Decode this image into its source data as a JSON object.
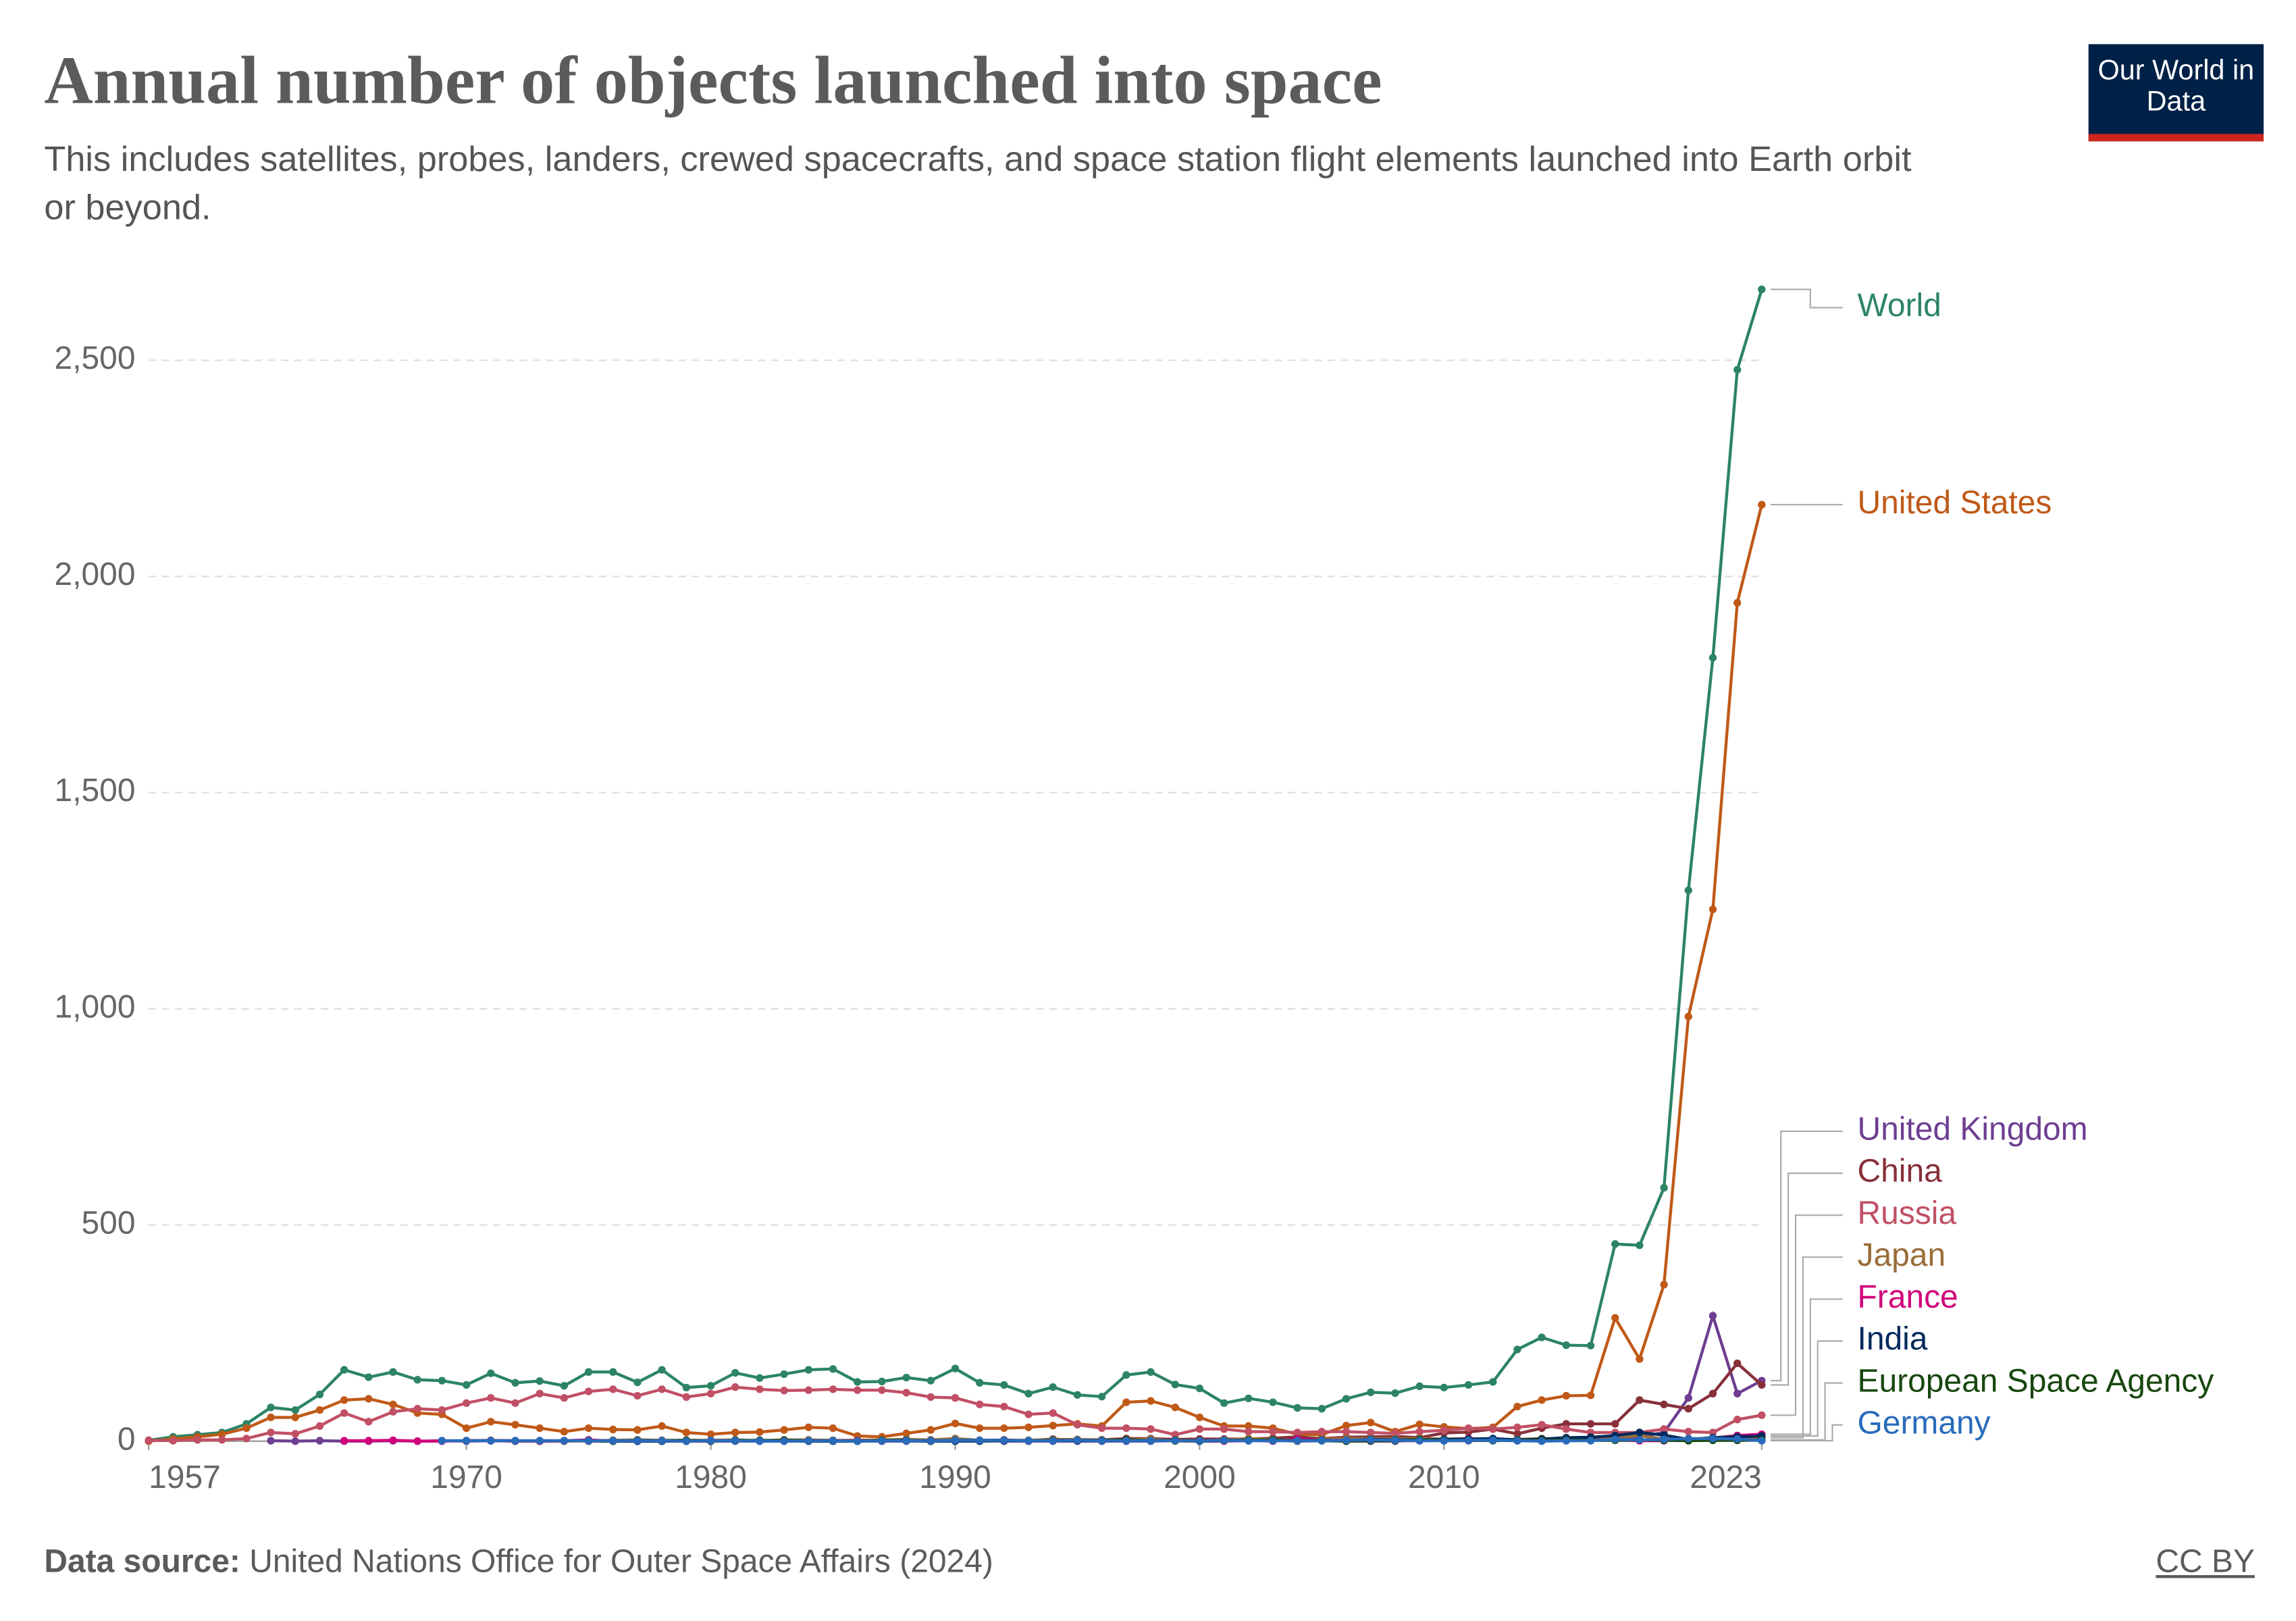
{
  "header": {
    "logo": "Our World in Data"
  },
  "footer": {
    "source_label": "Data source:",
    "source": "United Nations Office for Outer Space Affairs (2024)",
    "license": "CC BY"
  },
  "chart_data": {
    "type": "line",
    "title": "Annual number of objects launched into space",
    "subtitle": "This includes satellites, probes, landers, crewed spacecrafts, and space station flight elements launched into Earth orbit or beyond.",
    "x": [
      1957,
      1958,
      1959,
      1960,
      1961,
      1962,
      1963,
      1964,
      1965,
      1966,
      1967,
      1968,
      1969,
      1970,
      1971,
      1972,
      1973,
      1974,
      1975,
      1976,
      1977,
      1978,
      1979,
      1980,
      1981,
      1982,
      1983,
      1984,
      1985,
      1986,
      1987,
      1988,
      1989,
      1990,
      1991,
      1992,
      1993,
      1994,
      1995,
      1996,
      1997,
      1998,
      1999,
      2000,
      2001,
      2002,
      2003,
      2004,
      2005,
      2006,
      2007,
      2008,
      2009,
      2010,
      2011,
      2012,
      2013,
      2014,
      2015,
      2016,
      2017,
      2018,
      2019,
      2020,
      2021,
      2022,
      2023
    ],
    "xlim": [
      1957,
      2023
    ],
    "xticks": [
      1957,
      1970,
      1980,
      1990,
      2000,
      2010,
      2023
    ],
    "ylim": [
      0,
      2700
    ],
    "yticks": [
      0,
      500,
      {
        "value": 1000,
        "label": "1,000"
      },
      {
        "value": 1500,
        "label": "1,500"
      },
      {
        "value": 2000,
        "label": "2,000"
      },
      {
        "value": 2500,
        "label": "2,500"
      }
    ],
    "grid": true,
    "series": [
      {
        "name": "World",
        "color": "#2c8465",
        "values": [
          2,
          10,
          15,
          20,
          40,
          78,
          72,
          108,
          165,
          148,
          160,
          142,
          140,
          130,
          157,
          135,
          139,
          128,
          160,
          160,
          136,
          165,
          124,
          128,
          158,
          146,
          155,
          165,
          167,
          137,
          138,
          147,
          140,
          168,
          135,
          130,
          110,
          125,
          107,
          103,
          153,
          160,
          131,
          122,
          88,
          99,
          90,
          77,
          75,
          98,
          113,
          111,
          127,
          124,
          130,
          137,
          212,
          240,
          222,
          221,
          456,
          453,
          586,
          1274,
          1812,
          2478,
          2664
        ]
      },
      {
        "name": "United States",
        "color": "#c05917",
        "values": [
          0,
          5,
          10,
          16,
          30,
          55,
          55,
          72,
          95,
          98,
          85,
          65,
          62,
          30,
          45,
          38,
          30,
          22,
          30,
          27,
          26,
          35,
          20,
          16,
          20,
          21,
          26,
          32,
          30,
          12,
          10,
          18,
          26,
          41,
          30,
          30,
          32,
          36,
          40,
          35,
          90,
          93,
          78,
          55,
          35,
          35,
          30,
          16,
          15,
          36,
          43,
          22,
          39,
          33,
          29,
          32,
          80,
          95,
          105,
          106,
          285,
          190,
          362,
          982,
          1230,
          1939,
          2166
        ]
      },
      {
        "name": "United Kingdom",
        "color": "#6d3e91",
        "values": [
          null,
          null,
          null,
          null,
          null,
          1,
          0,
          1,
          0,
          0,
          1,
          0,
          1,
          0,
          1,
          0,
          1,
          1,
          0,
          0,
          0,
          0,
          0,
          0,
          0,
          0,
          0,
          0,
          0,
          0,
          0,
          0,
          0,
          2,
          1,
          0,
          0,
          0,
          0,
          0,
          0,
          0,
          1,
          0,
          0,
          1,
          2,
          0,
          1,
          0,
          0,
          0,
          3,
          1,
          1,
          2,
          2,
          5,
          5,
          3,
          3,
          10,
          20,
          100,
          290,
          110,
          140
        ]
      },
      {
        "name": "China",
        "color": "#883039",
        "values": [
          null,
          null,
          null,
          null,
          null,
          null,
          null,
          null,
          null,
          null,
          null,
          null,
          null,
          1,
          1,
          0,
          0,
          0,
          1,
          2,
          1,
          0,
          0,
          0,
          1,
          1,
          1,
          2,
          1,
          2,
          2,
          4,
          0,
          4,
          1,
          3,
          1,
          5,
          2,
          3,
          6,
          6,
          4,
          5,
          5,
          5,
          7,
          10,
          6,
          9,
          10,
          11,
          8,
          19,
          21,
          28,
          17,
          30,
          40,
          40,
          40,
          95,
          85,
          75,
          110,
          180,
          130
        ]
      },
      {
        "name": "Russia",
        "color": "#c15065",
        "values": [
          2,
          1,
          3,
          3,
          6,
          20,
          17,
          35,
          65,
          45,
          68,
          75,
          72,
          88,
          100,
          88,
          110,
          100,
          115,
          120,
          105,
          120,
          102,
          110,
          125,
          120,
          117,
          118,
          120,
          118,
          118,
          112,
          102,
          100,
          85,
          80,
          62,
          65,
          38,
          30,
          30,
          28,
          15,
          28,
          28,
          22,
          22,
          20,
          22,
          22,
          20,
          18,
          22,
          25,
          30,
          28,
          32,
          38,
          28,
          20,
          20,
          20,
          28,
          22,
          20,
          50,
          60
        ]
      },
      {
        "name": "Japan",
        "color": "#996d39",
        "values": [
          null,
          null,
          null,
          null,
          null,
          null,
          null,
          null,
          null,
          null,
          null,
          null,
          null,
          1,
          2,
          1,
          0,
          1,
          1,
          2,
          3,
          2,
          2,
          2,
          3,
          1,
          3,
          3,
          2,
          2,
          3,
          4,
          3,
          6,
          2,
          2,
          2,
          4,
          4,
          3,
          3,
          5,
          0,
          0,
          3,
          6,
          4,
          0,
          5,
          6,
          6,
          6,
          6,
          5,
          6,
          4,
          4,
          6,
          5,
          7,
          8,
          13,
          5,
          5,
          6,
          9,
          8
        ]
      },
      {
        "name": "France",
        "color": "#d1007b",
        "values": [
          null,
          null,
          null,
          null,
          null,
          null,
          null,
          null,
          1,
          1,
          2,
          0,
          0,
          1,
          1,
          1,
          0,
          1,
          3,
          0,
          0,
          1,
          0,
          1,
          1,
          1,
          1,
          1,
          1,
          1,
          1,
          2,
          1,
          2,
          1,
          2,
          1,
          2,
          2,
          2,
          1,
          1,
          2,
          1,
          1,
          2,
          0,
          5,
          2,
          2,
          1,
          1,
          1,
          2,
          6,
          2,
          1,
          2,
          1,
          2,
          3,
          1,
          1,
          4,
          7,
          13,
          16
        ]
      },
      {
        "name": "India",
        "color": "#00295b",
        "values": [
          null,
          null,
          null,
          null,
          null,
          null,
          null,
          null,
          null,
          null,
          null,
          null,
          null,
          null,
          null,
          null,
          null,
          null,
          1,
          0,
          0,
          0,
          1,
          1,
          1,
          2,
          1,
          0,
          0,
          0,
          1,
          1,
          0,
          0,
          0,
          1,
          1,
          1,
          1,
          1,
          1,
          1,
          2,
          0,
          2,
          2,
          2,
          1,
          2,
          1,
          4,
          3,
          3,
          4,
          5,
          6,
          3,
          5,
          8,
          9,
          13,
          20,
          14,
          4,
          8,
          10,
          12
        ]
      },
      {
        "name": "European Space Agency",
        "color": "#18470f",
        "values": [
          null,
          null,
          null,
          null,
          null,
          null,
          null,
          null,
          null,
          null,
          null,
          null,
          null,
          null,
          null,
          null,
          null,
          null,
          1,
          0,
          2,
          1,
          2,
          0,
          2,
          1,
          2,
          1,
          1,
          0,
          2,
          2,
          1,
          2,
          2,
          2,
          1,
          2,
          2,
          2,
          3,
          1,
          2,
          1,
          2,
          2,
          3,
          1,
          1,
          0,
          1,
          1,
          4,
          1,
          2,
          1,
          2,
          2,
          3,
          2,
          2,
          3,
          2,
          1,
          2,
          2,
          3
        ]
      },
      {
        "name": "Germany",
        "color": "#286bbb",
        "values": [
          null,
          null,
          null,
          null,
          null,
          null,
          null,
          null,
          null,
          null,
          null,
          null,
          1,
          1,
          1,
          1,
          1,
          1,
          1,
          1,
          1,
          1,
          0,
          1,
          1,
          0,
          0,
          1,
          1,
          0,
          1,
          1,
          1,
          2,
          2,
          2,
          1,
          1,
          2,
          1,
          1,
          1,
          1,
          1,
          2,
          1,
          1,
          1,
          1,
          2,
          3,
          2,
          1,
          1,
          2,
          2,
          1,
          0,
          1,
          1,
          4,
          3,
          4,
          6,
          6,
          5,
          1
        ]
      }
    ]
  }
}
